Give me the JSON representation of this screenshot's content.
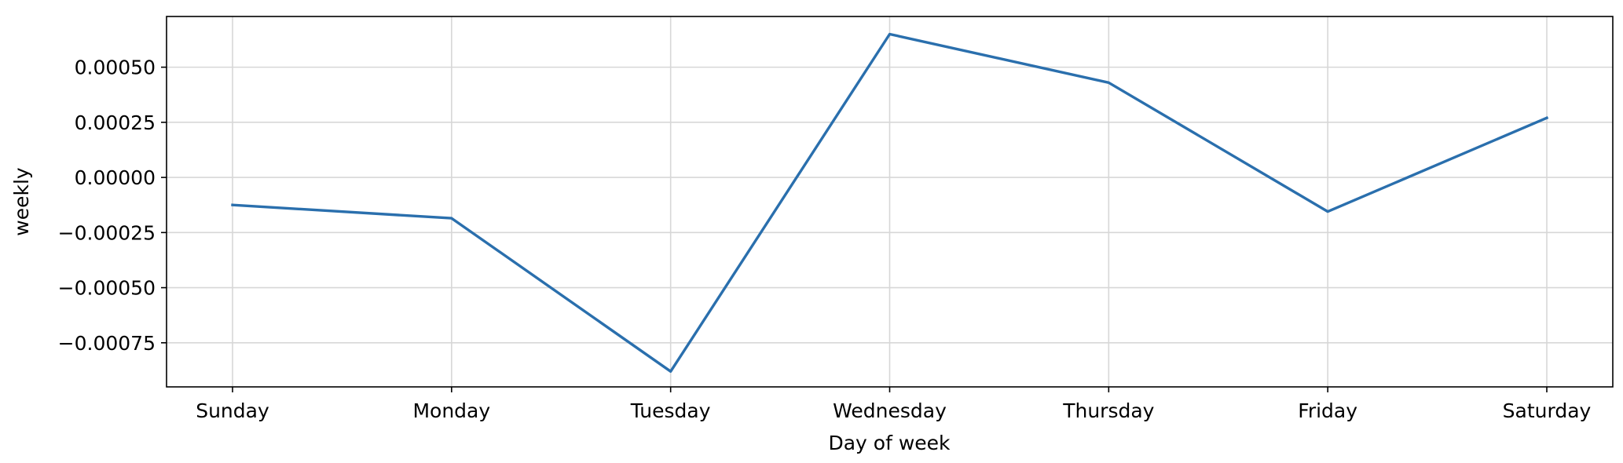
{
  "chart_data": {
    "type": "line",
    "title": "",
    "xlabel": "Day of week",
    "ylabel": "weekly",
    "categories": [
      "Sunday",
      "Monday",
      "Tuesday",
      "Wednesday",
      "Thursday",
      "Friday",
      "Saturday"
    ],
    "series": [
      {
        "values": [
          -0.000125,
          -0.000185,
          -0.00088,
          0.00065,
          0.00043,
          -0.000155,
          0.00027
        ],
        "color": "#2a6fad"
      }
    ],
    "ylim": [
      -0.00095,
      0.00073
    ],
    "yticks": [
      -0.00075,
      -0.0005,
      -0.00025,
      0.0,
      0.00025,
      0.0005
    ],
    "ytick_labels": [
      "−0.00075",
      "−0.00050",
      "−0.00025",
      "0.00000",
      "0.00025",
      "0.00050"
    ],
    "grid": true,
    "legend": "none"
  }
}
